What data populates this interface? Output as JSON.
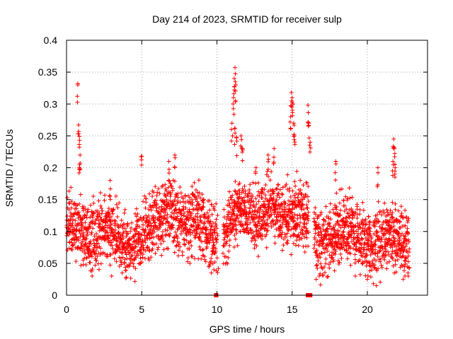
{
  "chart_data": {
    "type": "scatter",
    "title": "Day 214 of 2023, SRMTID for receiver sulp",
    "xlabel": "GPS time / hours",
    "ylabel": "SRMTID / TECUs",
    "xlim": [
      0,
      24
    ],
    "ylim": [
      0,
      0.4
    ],
    "xticks": [
      0,
      5,
      10,
      15,
      20
    ],
    "xtick_labels": [
      "0",
      "5",
      "10",
      "15",
      "20"
    ],
    "yticks": [
      0,
      0.05,
      0.1,
      0.15,
      0.2,
      0.25,
      0.3,
      0.35,
      0.4
    ],
    "ytick_labels": [
      "0",
      "0.05",
      "0.1",
      "0.15",
      "0.2",
      "0.25",
      "0.3",
      "0.35",
      "0.4"
    ],
    "grid": true,
    "marker": "+",
    "color": "#ff0000",
    "series": [
      {
        "name": "SRMTID",
        "trend": [
          [
            0.0,
            0.125
          ],
          [
            0.5,
            0.11
          ],
          [
            1.0,
            0.095
          ],
          [
            1.5,
            0.09
          ],
          [
            2.0,
            0.1
          ],
          [
            2.5,
            0.105
          ],
          [
            3.0,
            0.1
          ],
          [
            3.5,
            0.085
          ],
          [
            4.0,
            0.075
          ],
          [
            4.5,
            0.085
          ],
          [
            5.0,
            0.1
          ],
          [
            5.5,
            0.11
          ],
          [
            6.0,
            0.115
          ],
          [
            6.5,
            0.13
          ],
          [
            7.0,
            0.13
          ],
          [
            7.5,
            0.115
          ],
          [
            8.0,
            0.11
          ],
          [
            8.5,
            0.12
          ],
          [
            9.0,
            0.11
          ],
          [
            9.5,
            0.095
          ],
          [
            10.0,
            0.085
          ],
          [
            10.5,
            0.1
          ],
          [
            11.0,
            0.12
          ],
          [
            11.5,
            0.135
          ],
          [
            12.0,
            0.125
          ],
          [
            12.5,
            0.12
          ],
          [
            13.0,
            0.13
          ],
          [
            13.5,
            0.14
          ],
          [
            14.0,
            0.135
          ],
          [
            14.5,
            0.125
          ],
          [
            15.0,
            0.13
          ],
          [
            15.5,
            0.13
          ],
          [
            16.0,
            0.12
          ],
          [
            16.5,
            0.095
          ],
          [
            17.0,
            0.075
          ],
          [
            17.5,
            0.085
          ],
          [
            18.0,
            0.1
          ],
          [
            18.5,
            0.105
          ],
          [
            19.0,
            0.1
          ],
          [
            19.5,
            0.09
          ],
          [
            20.0,
            0.08
          ],
          [
            20.5,
            0.085
          ],
          [
            21.0,
            0.09
          ],
          [
            21.5,
            0.095
          ],
          [
            22.0,
            0.085
          ],
          [
            22.5,
            0.075
          ],
          [
            22.8,
            0.07
          ]
        ],
        "peaks": [
          [
            0.75,
            0.332
          ],
          [
            0.8,
            0.267
          ],
          [
            0.85,
            0.249
          ],
          [
            0.9,
            0.22
          ],
          [
            0.85,
            0.2
          ],
          [
            11.2,
            0.357
          ],
          [
            11.15,
            0.34
          ],
          [
            11.25,
            0.33
          ],
          [
            11.1,
            0.31
          ],
          [
            11.2,
            0.262
          ],
          [
            11.3,
            0.248
          ],
          [
            11.0,
            0.27
          ],
          [
            11.6,
            0.25
          ],
          [
            11.7,
            0.23
          ],
          [
            14.95,
            0.318
          ],
          [
            15.0,
            0.31
          ],
          [
            15.05,
            0.3
          ],
          [
            14.9,
            0.28
          ],
          [
            15.1,
            0.27
          ],
          [
            15.15,
            0.25
          ],
          [
            16.05,
            0.298
          ],
          [
            16.1,
            0.27
          ],
          [
            16.2,
            0.24
          ],
          [
            21.75,
            0.245
          ],
          [
            21.8,
            0.23
          ],
          [
            21.7,
            0.21
          ],
          [
            21.85,
            0.2
          ],
          [
            6.8,
            0.21
          ],
          [
            7.2,
            0.22
          ],
          [
            13.4,
            0.22
          ],
          [
            13.8,
            0.23
          ],
          [
            5.0,
            0.218
          ],
          [
            17.9,
            0.21
          ],
          [
            20.7,
            0.2
          ],
          [
            2.9,
            0.18
          ],
          [
            12.6,
            0.2
          ]
        ],
        "dips": [
          [
            1.7,
            0.03
          ],
          [
            3.0,
            0.03
          ],
          [
            3.7,
            0.035
          ],
          [
            9.8,
            0.04
          ],
          [
            16.6,
            0.025
          ],
          [
            16.8,
            0.03
          ],
          [
            19.2,
            0.03
          ],
          [
            20.0,
            0.025
          ],
          [
            20.4,
            0.018
          ],
          [
            20.6,
            0.015
          ],
          [
            22.5,
            0.03
          ],
          [
            22.7,
            0.035
          ],
          [
            4.1,
            0.045
          ],
          [
            10.1,
            0.042
          ],
          [
            8.2,
            0.05
          ]
        ],
        "gaps": [
          [
            10.05,
            10.4
          ],
          [
            16.1,
            16.45
          ]
        ],
        "zero_points": [
          [
            9.95,
            0.0
          ],
          [
            16.05,
            0.0
          ],
          [
            16.2,
            0.0
          ]
        ]
      }
    ]
  }
}
